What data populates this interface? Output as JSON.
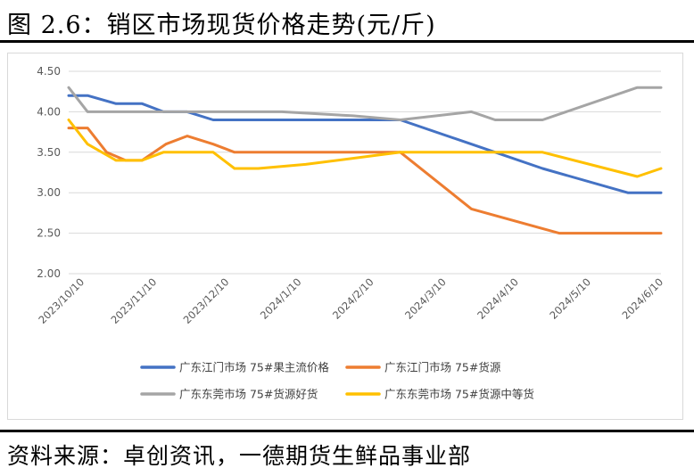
{
  "figure": {
    "title": "图 2.6：销区市场现货价格走势(元/斤)",
    "source": "资料来源：卓创资讯，一德期货生鲜品事业部"
  },
  "chart_data": {
    "type": "line",
    "title": "图 2.6：销区市场现货价格走势(元/斤)",
    "xlabel": "",
    "ylabel": "",
    "ylim": [
      2.0,
      4.5
    ],
    "yticks": [
      "2.00",
      "2.50",
      "3.00",
      "3.50",
      "4.00",
      "4.50"
    ],
    "x_tick_labels": [
      "2023/10/10",
      "2023/11/10",
      "2023/12/10",
      "2024/1/10",
      "2024/2/10",
      "2024/3/10",
      "2024/4/10",
      "2024/5/10",
      "2024/6/10"
    ],
    "x_range_days": [
      0,
      250
    ],
    "gridlines": true,
    "legend_position": "bottom",
    "series": [
      {
        "name": "广东江门市场 75#果主流价格",
        "color": "#4472C4",
        "days": [
          0,
          8,
          20,
          31,
          40,
          50,
          61,
          80,
          100,
          120,
          140,
          170,
          200,
          236,
          250
        ],
        "values": [
          4.2,
          4.2,
          4.1,
          4.1,
          4.0,
          4.0,
          3.9,
          3.9,
          3.9,
          3.9,
          3.9,
          3.6,
          3.3,
          3.0,
          3.0
        ]
      },
      {
        "name": "广东江门市场 75#货源",
        "color": "#ED7D31",
        "days": [
          0,
          8,
          16,
          24,
          31,
          41,
          50,
          61,
          70,
          100,
          140,
          170,
          207,
          230,
          250
        ],
        "values": [
          3.8,
          3.8,
          3.5,
          3.4,
          3.4,
          3.6,
          3.7,
          3.6,
          3.5,
          3.5,
          3.5,
          2.8,
          2.5,
          2.5,
          2.5
        ]
      },
      {
        "name": "广东东莞市场 75#货源好货",
        "color": "#A5A5A5",
        "days": [
          0,
          8,
          20,
          31,
          50,
          61,
          90,
          120,
          140,
          170,
          180,
          200,
          240,
          250
        ],
        "values": [
          4.3,
          4.0,
          4.0,
          4.0,
          4.0,
          4.0,
          4.0,
          3.95,
          3.9,
          4.0,
          3.9,
          3.9,
          4.3,
          4.3
        ]
      },
      {
        "name": "广东东莞市场 75#货源中等货",
        "color": "#FFC000",
        "days": [
          0,
          8,
          20,
          31,
          40,
          50,
          61,
          70,
          80,
          100,
          140,
          170,
          200,
          240,
          250
        ],
        "values": [
          3.9,
          3.6,
          3.4,
          3.4,
          3.5,
          3.5,
          3.5,
          3.3,
          3.3,
          3.35,
          3.5,
          3.5,
          3.5,
          3.2,
          3.3
        ]
      }
    ]
  }
}
